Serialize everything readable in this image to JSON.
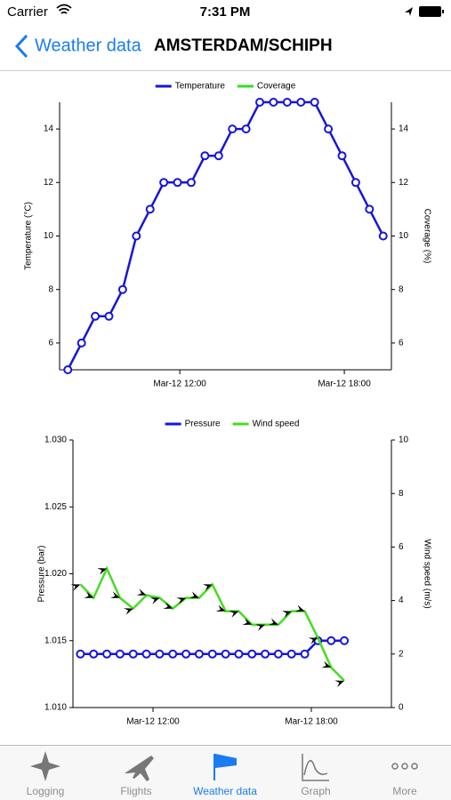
{
  "status_bar": {
    "carrier": "Carrier",
    "time": "7:31 PM"
  },
  "nav": {
    "back": "Weather data",
    "title": "AMSTERDAM/SCHIPH"
  },
  "chart_data": [
    {
      "type": "line",
      "x": [
        "Mar-12 07:55",
        "Mar-12 08:25",
        "Mar-12 08:55",
        "Mar-12 09:25",
        "Mar-12 09:55",
        "Mar-12 10:25",
        "Mar-12 10:55",
        "Mar-12 11:25",
        "Mar-12 11:55",
        "Mar-12 12:25",
        "Mar-12 12:55",
        "Mar-12 13:25",
        "Mar-12 13:55",
        "Mar-12 14:25",
        "Mar-12 14:55",
        "Mar-12 15:25",
        "Mar-12 15:55",
        "Mar-12 16:25",
        "Mar-12 16:55",
        "Mar-12 17:25",
        "Mar-12 17:55",
        "Mar-12 18:25",
        "Mar-12 18:55",
        "Mar-12 19:25"
      ],
      "xlim": [
        "Mar-12 07:37",
        "Mar-12 19:43"
      ],
      "xticks": [
        "Mar-12 12:00",
        "Mar-12 18:00"
      ],
      "ylim": [
        5,
        15
      ],
      "yticks": [
        6,
        8,
        10,
        12,
        14
      ],
      "y_label": "Temperature (°C)",
      "y2lim": [
        5,
        15
      ],
      "y2ticks": [
        6,
        8,
        10,
        12,
        14
      ],
      "y2_label": "Coverage (%)",
      "series": [
        {
          "name": "Temperature",
          "color": "#1616d8",
          "marker": "circle",
          "values": [
            5,
            6,
            7,
            7,
            8,
            10,
            11,
            12,
            12,
            12,
            13,
            13,
            14,
            14,
            15,
            15,
            15,
            15,
            15,
            14,
            13,
            12,
            11,
            10
          ]
        },
        {
          "name": "Coverage",
          "color": "#33dd22",
          "axis": "y2",
          "marker": "none",
          "values": [
            null,
            null,
            null,
            null,
            null,
            null,
            null,
            null,
            null,
            null,
            null,
            null,
            null,
            null,
            null,
            null,
            null,
            null,
            null,
            null,
            null,
            null,
            null,
            null
          ]
        }
      ]
    },
    {
      "type": "line",
      "x": [
        "Mar-12 09:15",
        "Mar-12 09:45",
        "Mar-12 10:15",
        "Mar-12 10:45",
        "Mar-12 11:15",
        "Mar-12 11:45",
        "Mar-12 12:15",
        "Mar-12 12:45",
        "Mar-12 13:15",
        "Mar-12 13:45",
        "Mar-12 14:15",
        "Mar-12 14:45",
        "Mar-12 15:15",
        "Mar-12 15:45",
        "Mar-12 16:15",
        "Mar-12 16:45",
        "Mar-12 17:15",
        "Mar-12 17:45",
        "Mar-12 18:15",
        "Mar-12 18:45",
        "Mar-12 19:15"
      ],
      "xlim": [
        "Mar-12 08:58",
        "Mar-12 21:02"
      ],
      "xticks": [
        "Mar-12 12:00",
        "Mar-12 18:00"
      ],
      "ylim": [
        1.01,
        1.03
      ],
      "yticks": [
        {
          "value": 1.01,
          "label": "1.010"
        },
        1.015,
        {
          "value": 1.02,
          "label": "1.020"
        },
        1.025,
        {
          "value": 1.03,
          "label": "1.030"
        }
      ],
      "y_label": "Pressure (bar)",
      "y2lim": [
        0,
        10
      ],
      "y2ticks": [
        0,
        2,
        4,
        6,
        8,
        10
      ],
      "y2_label": "Wind speed (m/s)",
      "series": [
        {
          "name": "Pressure",
          "color": "#1616d8",
          "marker": "circle",
          "values": [
            1.014,
            1.014,
            1.014,
            1.014,
            1.014,
            1.014,
            1.014,
            1.014,
            1.014,
            1.014,
            1.014,
            1.014,
            1.014,
            1.014,
            1.014,
            1.014,
            1.014,
            1.014,
            1.015,
            1.015,
            1.015
          ]
        },
        {
          "name": "Wind speed",
          "color": "#44dd22",
          "axis": "y2",
          "marker": "arrow",
          "values": [
            4.6,
            4.1,
            5.2,
            4.1,
            3.7,
            4.2,
            4.1,
            3.7,
            4.1,
            4.1,
            4.6,
            3.6,
            3.6,
            3.1,
            3.1,
            3.1,
            3.6,
            3.6,
            2.6,
            1.5,
            1.0
          ]
        }
      ]
    }
  ],
  "tabs": [
    {
      "label": "Logging"
    },
    {
      "label": "Flights"
    },
    {
      "label": "Weather data"
    },
    {
      "label": "Graph"
    },
    {
      "label": "More"
    }
  ],
  "selected_tab": 2
}
